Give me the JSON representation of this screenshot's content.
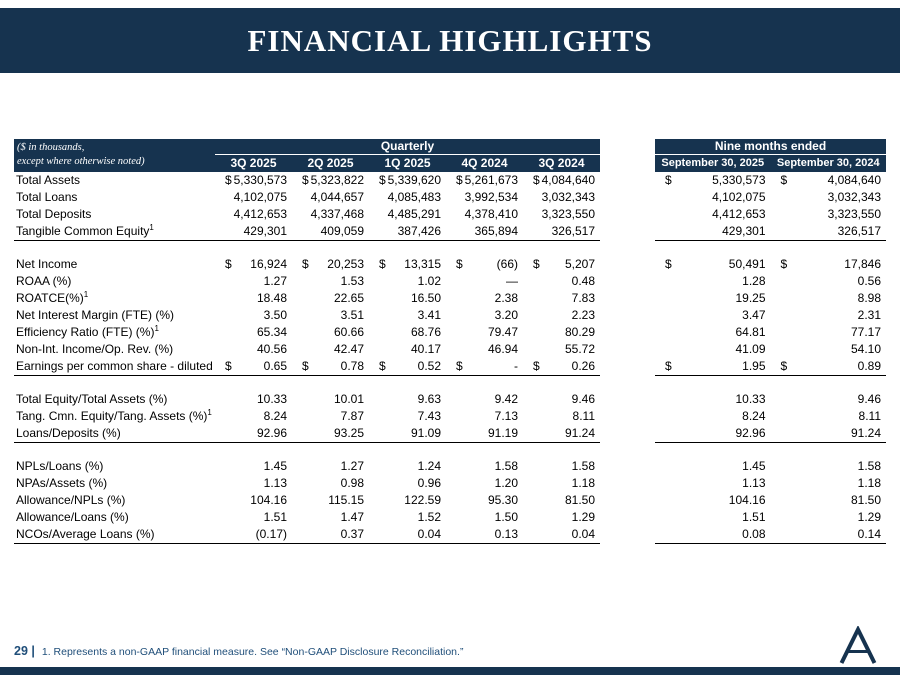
{
  "slide": {
    "title": "FINANCIAL HIGHLIGHTS",
    "page_number": "29 |",
    "footnote": "1. Represents a non-GAAP financial measure. See “Non-GAAP Disclosure Reconciliation.”",
    "logo": "letter-a-monogram"
  },
  "colors": {
    "navy": "#16334F",
    "footnote_blue": "#1F4E79",
    "body_text": "#000000",
    "header_text": "#FFFFFF"
  },
  "quarterly_table": {
    "corner_note_line1": "($ in thousands,",
    "corner_note_line2": "except where otherwise noted)",
    "group_header": "Quarterly",
    "columns": [
      "3Q 2025",
      "2Q 2025",
      "1Q 2025",
      "4Q 2024",
      "3Q 2024"
    ]
  },
  "nine_month_table": {
    "group_header": "Nine months ended",
    "columns": [
      "September 30, 2025",
      "September 30, 2024"
    ]
  },
  "sections": [
    {
      "rows": [
        {
          "label": "Total Assets",
          "sup": "",
          "dollar": true,
          "quarterly": [
            "5,330,573",
            "5,323,822",
            "5,339,620",
            "5,261,673",
            "4,084,640"
          ],
          "nine_month": [
            "5,330,573",
            "4,084,640"
          ]
        },
        {
          "label": "Total Loans",
          "sup": "",
          "dollar": false,
          "quarterly": [
            "4,102,075",
            "4,044,657",
            "4,085,483",
            "3,992,534",
            "3,032,343"
          ],
          "nine_month": [
            "4,102,075",
            "3,032,343"
          ]
        },
        {
          "label": "Total Deposits",
          "sup": "",
          "dollar": false,
          "quarterly": [
            "4,412,653",
            "4,337,468",
            "4,485,291",
            "4,378,410",
            "3,323,550"
          ],
          "nine_month": [
            "4,412,653",
            "3,323,550"
          ]
        },
        {
          "label": "Tangible Common Equity",
          "sup": "1",
          "dollar": false,
          "quarterly": [
            "429,301",
            "409,059",
            "387,426",
            "365,894",
            "326,517"
          ],
          "nine_month": [
            "429,301",
            "326,517"
          ]
        }
      ]
    },
    {
      "rows": [
        {
          "label": "Net Income",
          "sup": "",
          "dollar": true,
          "quarterly": [
            "16,924",
            "20,253",
            "13,315",
            "(66)",
            "5,207"
          ],
          "nine_month": [
            "50,491",
            "17,846"
          ]
        },
        {
          "label": "ROAA (%)",
          "sup": "",
          "dollar": false,
          "quarterly": [
            "1.27",
            "1.53",
            "1.02",
            "—",
            "0.48"
          ],
          "nine_month": [
            "1.28",
            "0.56"
          ]
        },
        {
          "label": "ROATCE(%)",
          "sup": "1",
          "dollar": false,
          "quarterly": [
            "18.48",
            "22.65",
            "16.50",
            "2.38",
            "7.83"
          ],
          "nine_month": [
            "19.25",
            "8.98"
          ]
        },
        {
          "label": "Net Interest Margin (FTE) (%)",
          "sup": "",
          "dollar": false,
          "quarterly": [
            "3.50",
            "3.51",
            "3.41",
            "3.20",
            "2.23"
          ],
          "nine_month": [
            "3.47",
            "2.31"
          ]
        },
        {
          "label": "Efficiency Ratio (FTE) (%)",
          "sup": "1",
          "dollar": false,
          "quarterly": [
            "65.34",
            "60.66",
            "68.76",
            "79.47",
            "80.29"
          ],
          "nine_month": [
            "64.81",
            "77.17"
          ]
        },
        {
          "label": "Non-Int. Income/Op. Rev. (%)",
          "sup": "",
          "dollar": false,
          "quarterly": [
            "40.56",
            "42.47",
            "40.17",
            "46.94",
            "55.72"
          ],
          "nine_month": [
            "41.09",
            "54.10"
          ]
        },
        {
          "label": "Earnings per common share - diluted",
          "sup": "",
          "dollar": true,
          "quarterly": [
            "0.65",
            "0.78",
            "0.52",
            "-",
            "0.26"
          ],
          "nine_month": [
            "1.95",
            "0.89"
          ]
        }
      ]
    },
    {
      "rows": [
        {
          "label": "Total Equity/Total Assets (%)",
          "sup": "",
          "dollar": false,
          "quarterly": [
            "10.33",
            "10.01",
            "9.63",
            "9.42",
            "9.46"
          ],
          "nine_month": [
            "10.33",
            "9.46"
          ]
        },
        {
          "label": "Tang. Cmn. Equity/Tang. Assets (%)",
          "sup": "1",
          "dollar": false,
          "quarterly": [
            "8.24",
            "7.87",
            "7.43",
            "7.13",
            "8.11"
          ],
          "nine_month": [
            "8.24",
            "8.11"
          ]
        },
        {
          "label": "Loans/Deposits (%)",
          "sup": "",
          "dollar": false,
          "quarterly": [
            "92.96",
            "93.25",
            "91.09",
            "91.19",
            "91.24"
          ],
          "nine_month": [
            "92.96",
            "91.24"
          ]
        }
      ]
    },
    {
      "rows": [
        {
          "label": "NPLs/Loans (%)",
          "sup": "",
          "dollar": false,
          "quarterly": [
            "1.45",
            "1.27",
            "1.24",
            "1.58",
            "1.58"
          ],
          "nine_month": [
            "1.45",
            "1.58"
          ]
        },
        {
          "label": "NPAs/Assets (%)",
          "sup": "",
          "dollar": false,
          "quarterly": [
            "1.13",
            "0.98",
            "0.96",
            "1.20",
            "1.18"
          ],
          "nine_month": [
            "1.13",
            "1.18"
          ]
        },
        {
          "label": "Allowance/NPLs (%)",
          "sup": "",
          "dollar": false,
          "quarterly": [
            "104.16",
            "115.15",
            "122.59",
            "95.30",
            "81.50"
          ],
          "nine_month": [
            "104.16",
            "81.50"
          ]
        },
        {
          "label": "Allowance/Loans (%)",
          "sup": "",
          "dollar": false,
          "quarterly": [
            "1.51",
            "1.47",
            "1.52",
            "1.50",
            "1.29"
          ],
          "nine_month": [
            "1.51",
            "1.29"
          ]
        },
        {
          "label": "NCOs/Average Loans (%)",
          "sup": "",
          "dollar": false,
          "quarterly": [
            "(0.17)",
            "0.37",
            "0.04",
            "0.13",
            "0.04"
          ],
          "nine_month": [
            "0.08",
            "0.14"
          ]
        }
      ]
    }
  ]
}
